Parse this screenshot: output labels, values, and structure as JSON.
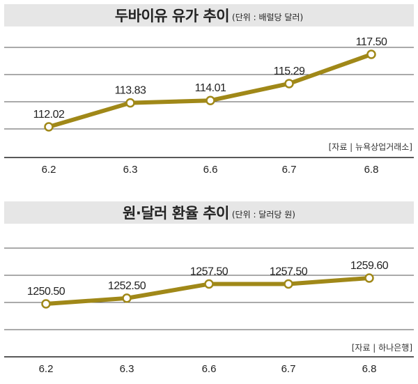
{
  "colors": {
    "line": "#a08818",
    "grid": "#555555",
    "title_bg": "#e6e6e6"
  },
  "chart_data": [
    {
      "type": "line",
      "title": "두바이유 유가 추이",
      "unit_note": "(단위 : 배럴당 달러)",
      "source": "[자료 | 뉴욕상업거래소]",
      "categories": [
        "6.2",
        "6.3",
        "6.6",
        "6.7",
        "6.8"
      ],
      "series": [
        {
          "values": [
            112.02,
            113.83,
            114.01,
            115.29,
            117.5
          ]
        }
      ],
      "data_labels": [
        "112.02",
        "113.83",
        "114.01",
        "115.29",
        "117.50"
      ],
      "grid": true
    },
    {
      "type": "line",
      "title": "원·달러 환율 추이",
      "unit_note": "(단위 : 달러당 원)",
      "source": "[자료 | 하나은행]",
      "categories": [
        "6.2",
        "6.3",
        "6.6",
        "6.7",
        "6.8"
      ],
      "series": [
        {
          "values": [
            1250.5,
            1252.5,
            1257.5,
            1257.5,
            1259.6
          ]
        }
      ],
      "data_labels": [
        "1250.50",
        "1252.50",
        "1257.50",
        "1257.50",
        "1259.60"
      ],
      "grid": true
    }
  ]
}
